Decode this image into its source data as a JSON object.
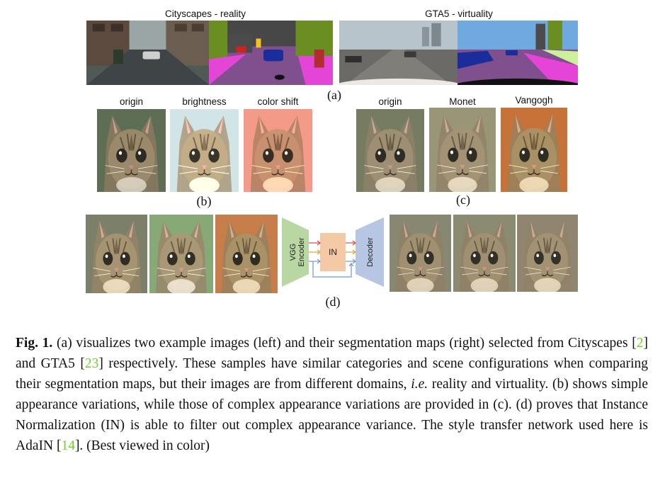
{
  "panel_a": {
    "left_title": "Cityscapes - reality",
    "right_title": "GTA5 - virtuality",
    "label": "(a)"
  },
  "panel_b": {
    "labels": [
      "origin",
      "brightness",
      "color shift"
    ],
    "label": "(b)"
  },
  "panel_c": {
    "labels": [
      "origin",
      "Monet",
      "Vangogh"
    ],
    "label": "(c)"
  },
  "panel_d": {
    "label": "(d)",
    "net": {
      "encoder": "VGG\nEncoder",
      "norm": "IN",
      "decoder": "Decoder"
    }
  },
  "caption": {
    "fig": "Fig. 1.",
    "t1": "(a) visualizes two example images (left) and their segmentation maps (right) selected from Cityscapes [",
    "c1": "2",
    "t2": "] and GTA5 [",
    "c2": "23",
    "t3": "] respectively. These samples have similar categories and scene configurations when comparing their segmentation maps, but their images are from different domains, ",
    "ie": "i.e.",
    "t4": " reality and virtuality. (b) shows simple appearance variations, while those of complex appearance variations are provided in (c). (d) proves that Instance Normalization (IN) is able to filter out complex appearance variance. The style transfer network used here is AdaIN [",
    "c3": "14",
    "t5": "]. (Best viewed in color)"
  },
  "colors": {
    "citation": "#6fd12a",
    "encoder": "#b9d7a2",
    "norm": "#f3c9a6",
    "decoder": "#b7c7e3"
  }
}
